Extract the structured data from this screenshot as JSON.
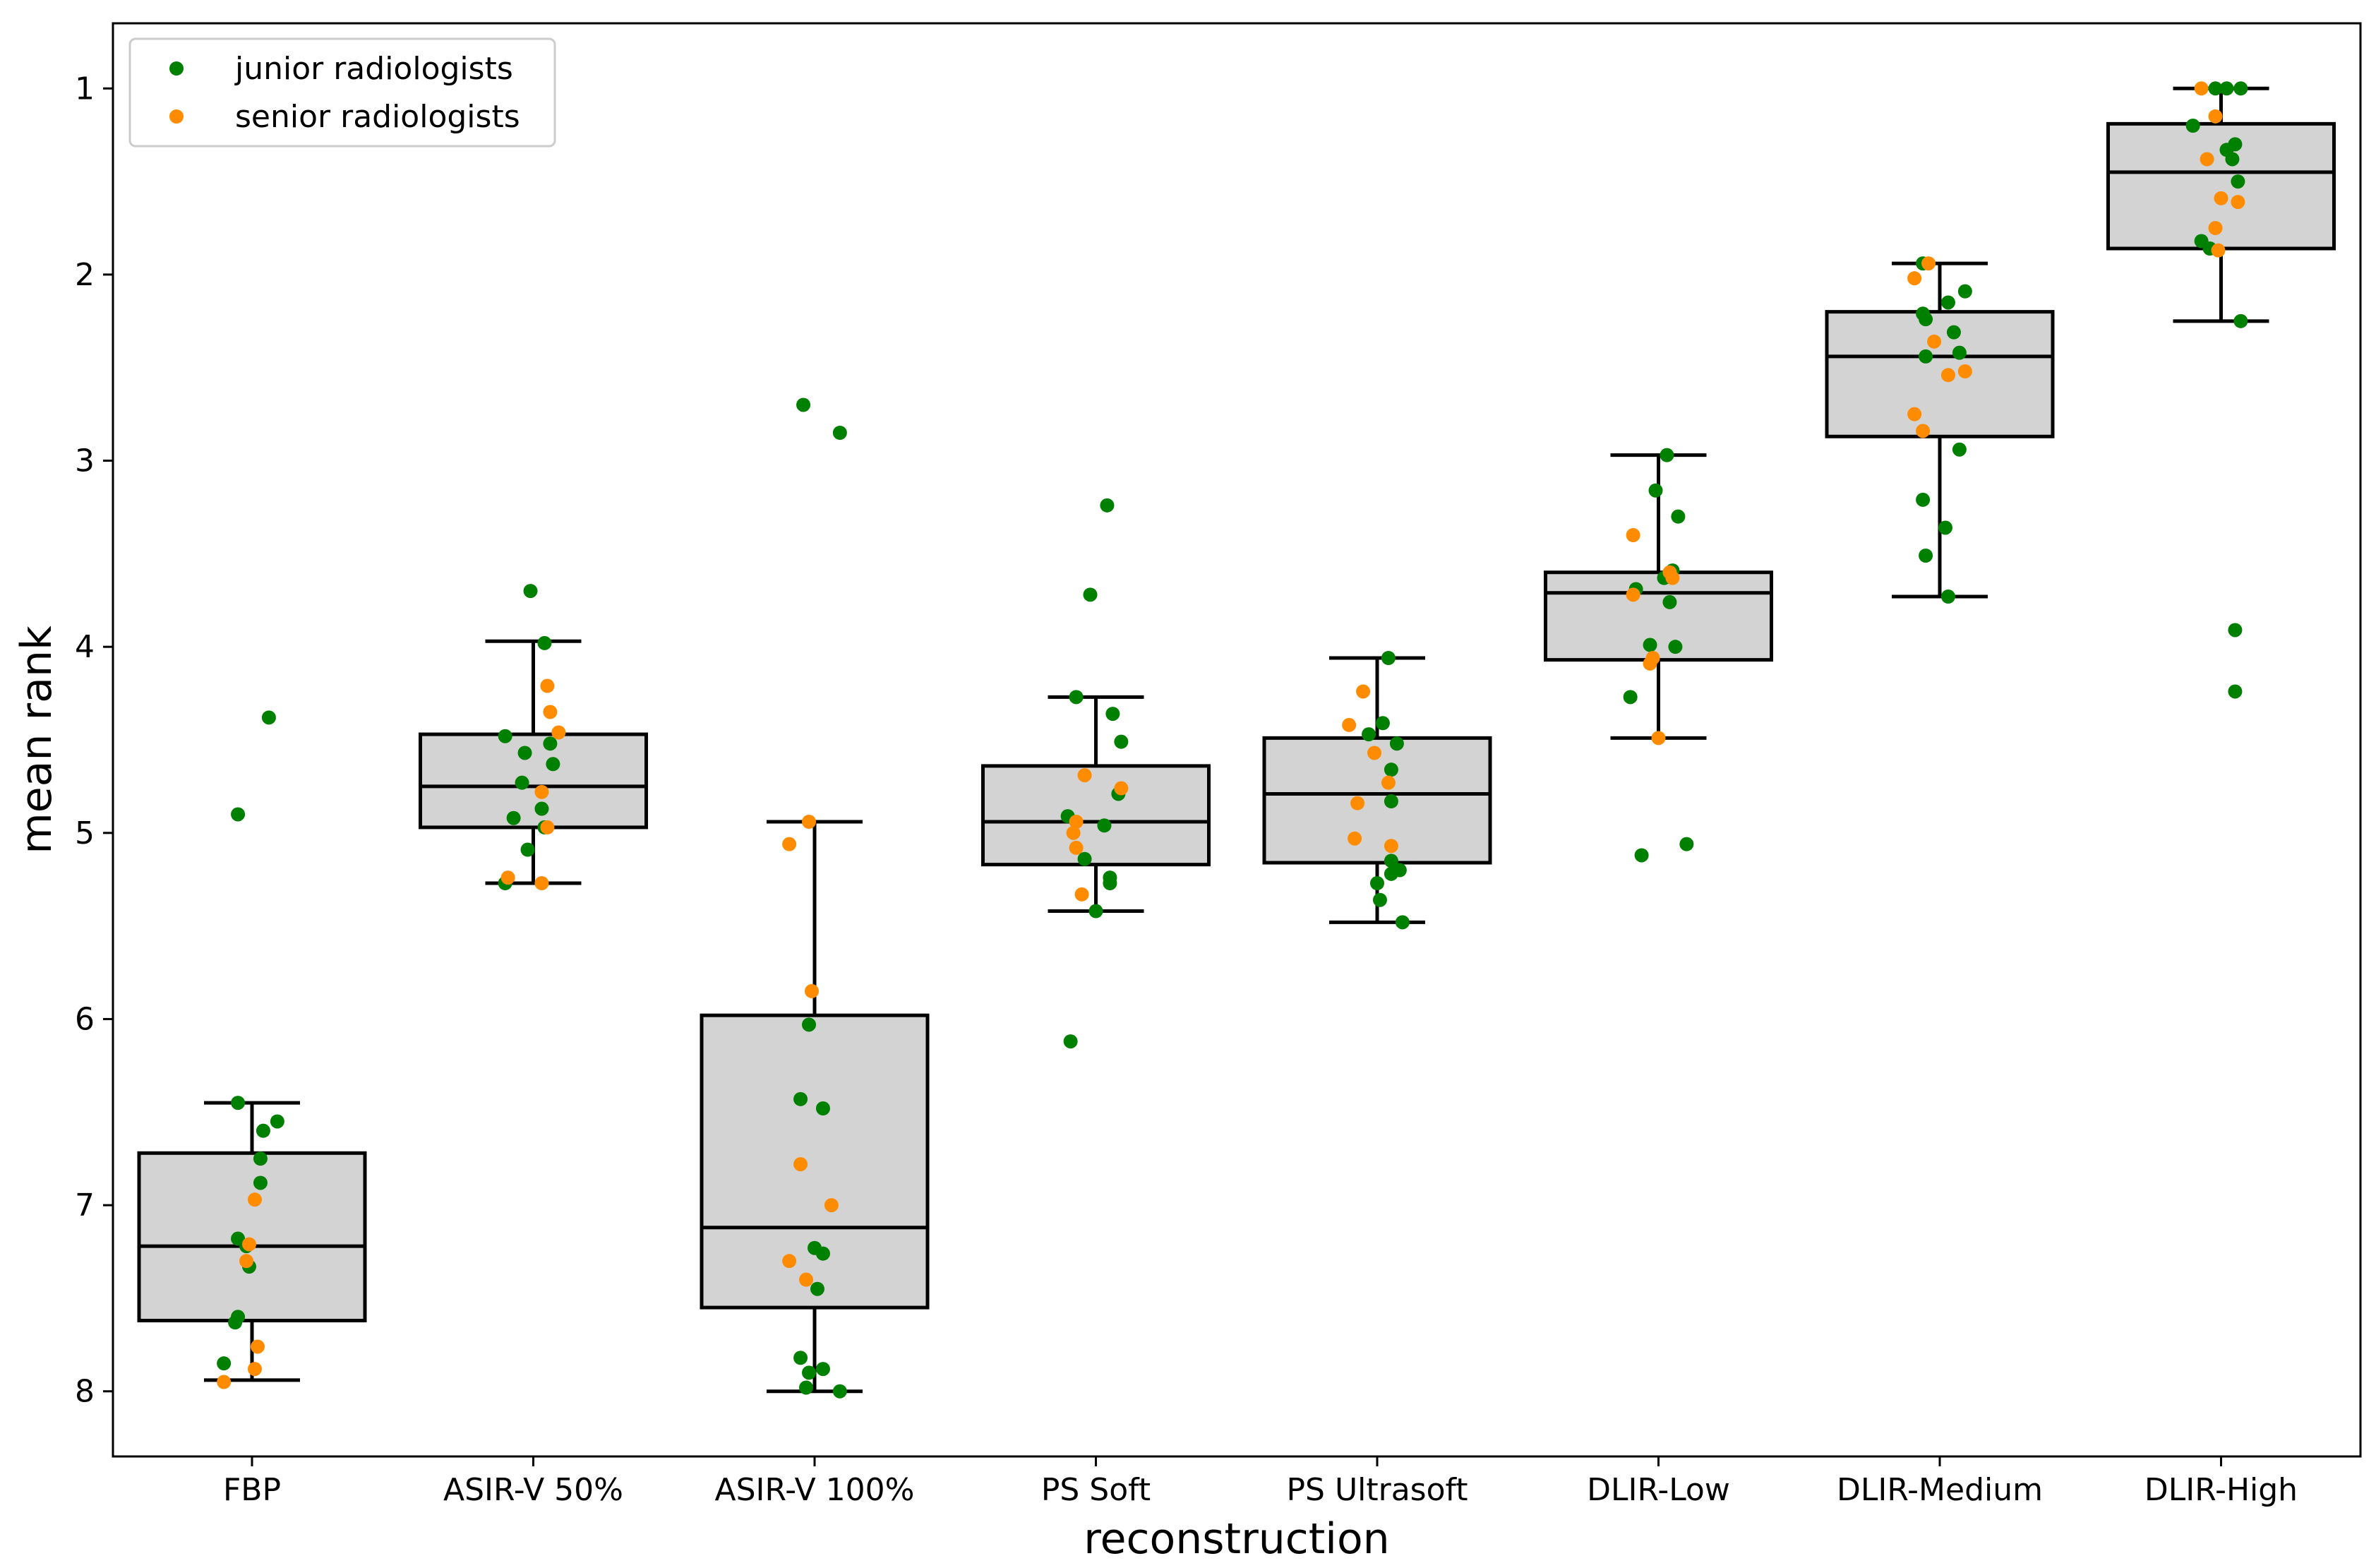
{
  "chart_data": {
    "type": "box",
    "xlabel": "reconstruction",
    "ylabel": "mean rank",
    "y_axis_inverted": true,
    "ylim": [
      8.35,
      0.65
    ],
    "yticks": [
      1,
      2,
      3,
      4,
      5,
      6,
      7,
      8
    ],
    "categories": [
      "FBP",
      "ASIR-V 50%",
      "ASIR-V 100%",
      "PS Soft",
      "PS Ultrasoft",
      "DLIR-Low",
      "DLIR-Medium",
      "DLIR-High"
    ],
    "legend": {
      "position": "upper-left",
      "entries": [
        {
          "label": "junior radiologists",
          "color": "#008000"
        },
        {
          "label": "senior radiologists",
          "color": "#ff8c00"
        }
      ]
    },
    "box_fill": "#d3d3d3",
    "boxes": [
      {
        "whisker_low": 6.45,
        "q1": 6.72,
        "median": 7.22,
        "q3": 7.62,
        "whisker_high": 7.94,
        "outliers": [
          4.38,
          4.9
        ]
      },
      {
        "whisker_low": 3.97,
        "q1": 4.47,
        "median": 4.75,
        "q3": 4.97,
        "whisker_high": 5.27,
        "outliers": [
          3.7
        ]
      },
      {
        "whisker_low": 4.94,
        "q1": 5.98,
        "median": 7.12,
        "q3": 7.55,
        "whisker_high": 8.0,
        "outliers": [
          2.7,
          2.85
        ]
      },
      {
        "whisker_low": 4.27,
        "q1": 4.64,
        "median": 4.94,
        "q3": 5.17,
        "whisker_high": 5.42,
        "outliers": [
          3.24,
          3.72,
          6.12
        ]
      },
      {
        "whisker_low": 4.06,
        "q1": 4.49,
        "median": 4.79,
        "q3": 5.16,
        "whisker_high": 5.48,
        "outliers": []
      },
      {
        "whisker_low": 2.97,
        "q1": 3.6,
        "median": 3.71,
        "q3": 4.07,
        "whisker_high": 4.49,
        "outliers": [
          5.06,
          5.12
        ]
      },
      {
        "whisker_low": 1.94,
        "q1": 2.2,
        "median": 2.44,
        "q3": 2.87,
        "whisker_high": 3.73,
        "outliers": []
      },
      {
        "whisker_low": 1.0,
        "q1": 1.19,
        "median": 1.45,
        "q3": 1.86,
        "whisker_high": 2.25,
        "outliers": [
          3.91,
          4.24
        ]
      }
    ],
    "points": {
      "junior": [
        [
          [
            6.45,
            -0.05
          ],
          [
            6.55,
            0.09
          ],
          [
            6.6,
            0.04
          ],
          [
            6.75,
            0.03
          ],
          [
            6.88,
            0.03
          ],
          [
            7.18,
            -0.05
          ],
          [
            7.22,
            -0.02
          ],
          [
            7.33,
            -0.01
          ],
          [
            7.6,
            -0.05
          ],
          [
            7.63,
            -0.06
          ],
          [
            7.85,
            -0.1
          ],
          [
            4.38,
            0.06
          ],
          [
            4.9,
            -0.05
          ]
        ],
        [
          [
            3.7,
            -0.01
          ],
          [
            3.98,
            0.04
          ],
          [
            4.48,
            -0.1
          ],
          [
            4.52,
            0.06
          ],
          [
            4.57,
            -0.03
          ],
          [
            4.63,
            0.07
          ],
          [
            4.73,
            -0.04
          ],
          [
            4.87,
            0.03
          ],
          [
            4.92,
            -0.07
          ],
          [
            4.97,
            0.04
          ],
          [
            5.09,
            -0.02
          ],
          [
            5.27,
            -0.1
          ]
        ],
        [
          [
            2.7,
            -0.04
          ],
          [
            2.85,
            0.09
          ],
          [
            6.03,
            -0.02
          ],
          [
            6.43,
            -0.05
          ],
          [
            6.48,
            0.03
          ],
          [
            7.23,
            0.0
          ],
          [
            7.26,
            0.03
          ],
          [
            7.45,
            0.01
          ],
          [
            7.82,
            -0.05
          ],
          [
            7.88,
            0.03
          ],
          [
            7.9,
            -0.02
          ],
          [
            7.98,
            -0.03
          ],
          [
            8.0,
            0.09
          ]
        ],
        [
          [
            3.24,
            0.04
          ],
          [
            3.72,
            -0.02
          ],
          [
            4.27,
            -0.07
          ],
          [
            4.36,
            0.06
          ],
          [
            4.51,
            0.09
          ],
          [
            4.79,
            0.08
          ],
          [
            4.91,
            -0.1
          ],
          [
            4.96,
            0.03
          ],
          [
            5.14,
            -0.04
          ],
          [
            5.24,
            0.05
          ],
          [
            5.27,
            0.05
          ],
          [
            5.42,
            0.0
          ],
          [
            6.12,
            -0.09
          ]
        ],
        [
          [
            4.06,
            0.04
          ],
          [
            4.41,
            0.02
          ],
          [
            4.47,
            -0.03
          ],
          [
            4.52,
            0.07
          ],
          [
            4.66,
            0.05
          ],
          [
            4.83,
            0.05
          ],
          [
            5.15,
            0.05
          ],
          [
            5.2,
            0.08
          ],
          [
            5.22,
            0.05
          ],
          [
            5.27,
            0.0
          ],
          [
            5.36,
            0.01
          ],
          [
            5.48,
            0.09
          ]
        ],
        [
          [
            2.97,
            0.03
          ],
          [
            3.16,
            -0.01
          ],
          [
            3.3,
            0.07
          ],
          [
            3.59,
            0.05
          ],
          [
            3.63,
            0.02
          ],
          [
            3.69,
            -0.08
          ],
          [
            3.76,
            0.04
          ],
          [
            3.99,
            -0.03
          ],
          [
            4.0,
            0.06
          ],
          [
            4.27,
            -0.1
          ],
          [
            5.06,
            0.1
          ],
          [
            5.12,
            -0.06
          ]
        ],
        [
          [
            1.94,
            -0.06
          ],
          [
            2.09,
            0.09
          ],
          [
            2.15,
            0.03
          ],
          [
            2.21,
            -0.06
          ],
          [
            2.24,
            -0.05
          ],
          [
            2.31,
            0.05
          ],
          [
            2.42,
            0.07
          ],
          [
            2.44,
            -0.05
          ],
          [
            2.94,
            0.07
          ],
          [
            3.21,
            -0.06
          ],
          [
            3.36,
            0.02
          ],
          [
            3.51,
            -0.05
          ],
          [
            3.73,
            0.03
          ]
        ],
        [
          [
            1.0,
            -0.02
          ],
          [
            1.0,
            0.02
          ],
          [
            1.0,
            0.07
          ],
          [
            1.2,
            -0.1
          ],
          [
            1.33,
            0.02
          ],
          [
            1.38,
            0.04
          ],
          [
            1.3,
            0.05
          ],
          [
            1.5,
            0.06
          ],
          [
            1.82,
            -0.07
          ],
          [
            1.86,
            -0.04
          ],
          [
            2.25,
            0.07
          ],
          [
            3.91,
            0.05
          ],
          [
            4.24,
            0.05
          ]
        ]
      ],
      "senior": [
        [
          [
            6.97,
            0.01
          ],
          [
            7.21,
            -0.01
          ],
          [
            7.3,
            -0.02
          ],
          [
            7.76,
            0.02
          ],
          [
            7.88,
            0.01
          ],
          [
            7.95,
            -0.1
          ]
        ],
        [
          [
            4.21,
            0.05
          ],
          [
            4.35,
            0.06
          ],
          [
            4.46,
            0.09
          ],
          [
            4.78,
            0.03
          ],
          [
            4.97,
            0.05
          ],
          [
            5.24,
            -0.09
          ],
          [
            5.27,
            0.03
          ]
        ],
        [
          [
            4.94,
            -0.02
          ],
          [
            5.06,
            -0.09
          ],
          [
            5.85,
            -0.01
          ],
          [
            6.78,
            -0.05
          ],
          [
            7.0,
            0.06
          ],
          [
            7.3,
            -0.09
          ],
          [
            7.4,
            -0.03
          ]
        ],
        [
          [
            4.69,
            -0.04
          ],
          [
            4.76,
            0.09
          ],
          [
            4.94,
            -0.07
          ],
          [
            5.0,
            -0.08
          ],
          [
            5.08,
            -0.07
          ],
          [
            5.33,
            -0.05
          ]
        ],
        [
          [
            4.24,
            -0.05
          ],
          [
            4.42,
            -0.1
          ],
          [
            4.57,
            -0.01
          ],
          [
            4.73,
            0.04
          ],
          [
            4.84,
            -0.07
          ],
          [
            5.03,
            -0.08
          ],
          [
            5.07,
            0.05
          ]
        ],
        [
          [
            3.4,
            -0.09
          ],
          [
            3.6,
            0.04
          ],
          [
            3.63,
            0.05
          ],
          [
            3.72,
            -0.09
          ],
          [
            4.06,
            -0.02
          ],
          [
            4.09,
            -0.03
          ],
          [
            4.49,
            0.0
          ]
        ],
        [
          [
            1.94,
            -0.04
          ],
          [
            2.02,
            -0.09
          ],
          [
            2.36,
            -0.02
          ],
          [
            2.52,
            0.09
          ],
          [
            2.54,
            0.03
          ],
          [
            2.75,
            -0.09
          ],
          [
            2.84,
            -0.06
          ]
        ],
        [
          [
            1.0,
            -0.07
          ],
          [
            1.15,
            -0.02
          ],
          [
            1.38,
            -0.05
          ],
          [
            1.59,
            0.0
          ],
          [
            1.61,
            0.06
          ],
          [
            1.75,
            -0.02
          ],
          [
            1.87,
            -0.01
          ]
        ]
      ]
    }
  }
}
